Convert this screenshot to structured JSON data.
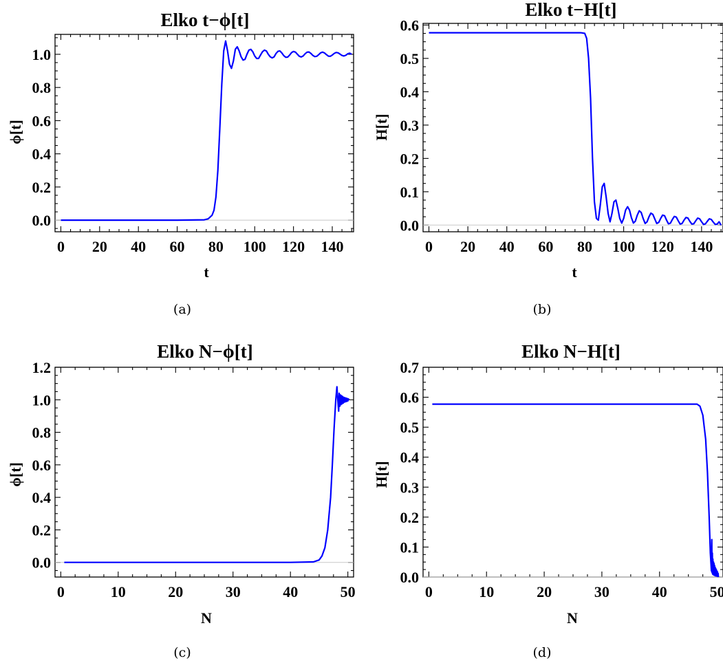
{
  "colors": {
    "series": "#0000ff",
    "frame": "#000000",
    "zero_line": "#c8c8c8"
  },
  "chart_data": [
    {
      "type": "line",
      "caption": "(a)",
      "title": "Elko t−ϕ[t]",
      "xlabel": "t",
      "ylabel": "ϕ[t]",
      "xlim": [
        -3,
        151
      ],
      "ylim": [
        -0.07,
        1.12
      ],
      "xticks": [
        0,
        20,
        40,
        60,
        80,
        100,
        120,
        140
      ],
      "yticks": [
        0.0,
        0.2,
        0.4,
        0.6,
        0.8,
        1.0
      ],
      "ytick_labels": [
        "0.0",
        "0.2",
        "0.4",
        "0.6",
        "0.8",
        "1.0"
      ],
      "series": [
        {
          "x": [
            0,
            20,
            40,
            60,
            74,
            76,
            78,
            79,
            80,
            81,
            82,
            83,
            84,
            85,
            86,
            87,
            88,
            89,
            90,
            91,
            92,
            93,
            94,
            95,
            96,
            97,
            98,
            99,
            100,
            101,
            102,
            103,
            104,
            105,
            106,
            107,
            108,
            109,
            110,
            111,
            112,
            113,
            114,
            115,
            116,
            117,
            118,
            119,
            120,
            121,
            122,
            123,
            124,
            125,
            126,
            127,
            128,
            129,
            130,
            131,
            132,
            133,
            134,
            135,
            136,
            137,
            138,
            139,
            140,
            141,
            142,
            143,
            144,
            145,
            146,
            147,
            148,
            149,
            150
          ],
          "y": [
            0.0,
            0.0,
            0.0,
            0.0,
            0.002,
            0.008,
            0.03,
            0.06,
            0.14,
            0.3,
            0.55,
            0.82,
            1.02,
            1.08,
            1.02,
            0.94,
            0.915,
            0.96,
            1.03,
            1.045,
            1.02,
            0.985,
            0.965,
            0.97,
            1.0,
            1.025,
            1.03,
            1.015,
            0.99,
            0.975,
            0.975,
            0.995,
            1.015,
            1.025,
            1.02,
            1.0,
            0.985,
            0.978,
            0.985,
            1.005,
            1.018,
            1.02,
            1.008,
            0.992,
            0.982,
            0.983,
            0.995,
            1.01,
            1.017,
            1.013,
            1.0,
            0.988,
            0.984,
            0.99,
            1.003,
            1.013,
            1.014,
            1.005,
            0.993,
            0.986,
            0.988,
            0.998,
            1.009,
            1.013,
            1.008,
            0.998,
            0.989,
            0.988,
            0.995,
            1.005,
            1.011,
            1.009,
            1.001,
            0.993,
            0.99,
            0.994,
            1.003,
            1.007,
            1.0
          ]
        }
      ]
    },
    {
      "type": "line",
      "caption": "(b)",
      "title": "Elko t−H[t]",
      "xlabel": "t",
      "ylabel": "H[t]",
      "xlim": [
        -3,
        151
      ],
      "ylim": [
        -0.02,
        0.605
      ],
      "xticks": [
        0,
        20,
        40,
        60,
        80,
        100,
        120,
        140
      ],
      "yticks": [
        0.0,
        0.1,
        0.2,
        0.3,
        0.4,
        0.5,
        0.6
      ],
      "ytick_labels": [
        "0.0",
        "0.1",
        "0.2",
        "0.3",
        "0.4",
        "0.5",
        "0.6"
      ],
      "series": [
        {
          "x": [
            0,
            20,
            40,
            60,
            78,
            80,
            81,
            82,
            83,
            84,
            85,
            86,
            87,
            88,
            89,
            90,
            91,
            92,
            93,
            94,
            95,
            96,
            97,
            98,
            99,
            100,
            101,
            102,
            103,
            104,
            105,
            106,
            107,
            108,
            109,
            110,
            111,
            112,
            113,
            114,
            115,
            116,
            117,
            118,
            119,
            120,
            121,
            122,
            123,
            124,
            125,
            126,
            127,
            128,
            129,
            130,
            131,
            132,
            133,
            134,
            135,
            136,
            137,
            138,
            139,
            140,
            141,
            142,
            143,
            144,
            145,
            146,
            147,
            148,
            149,
            150
          ],
          "y": [
            0.577,
            0.577,
            0.577,
            0.577,
            0.577,
            0.575,
            0.56,
            0.5,
            0.38,
            0.2,
            0.07,
            0.02,
            0.015,
            0.06,
            0.115,
            0.125,
            0.085,
            0.035,
            0.01,
            0.035,
            0.07,
            0.075,
            0.05,
            0.02,
            0.006,
            0.02,
            0.045,
            0.055,
            0.045,
            0.022,
            0.006,
            0.012,
            0.03,
            0.043,
            0.038,
            0.02,
            0.005,
            0.01,
            0.025,
            0.036,
            0.032,
            0.018,
            0.005,
            0.008,
            0.02,
            0.03,
            0.028,
            0.015,
            0.004,
            0.006,
            0.017,
            0.026,
            0.024,
            0.013,
            0.003,
            0.005,
            0.015,
            0.023,
            0.021,
            0.011,
            0.003,
            0.004,
            0.013,
            0.021,
            0.019,
            0.01,
            0.002,
            0.004,
            0.012,
            0.019,
            0.017,
            0.009,
            0.002,
            0.003,
            0.01,
            0.0
          ]
        }
      ]
    },
    {
      "type": "line",
      "caption": "(c)",
      "title": "Elko N−ϕ[t]",
      "xlabel": "N",
      "ylabel": "ϕ[t]",
      "xlim": [
        -1,
        51
      ],
      "ylim": [
        -0.09,
        1.2
      ],
      "xticks": [
        0,
        10,
        20,
        30,
        40,
        50
      ],
      "yticks": [
        0.0,
        0.2,
        0.4,
        0.6,
        0.8,
        1.0,
        1.2
      ],
      "ytick_labels": [
        "0.0",
        "0.2",
        "0.4",
        "0.6",
        "0.8",
        "1.0",
        "1.2"
      ],
      "series": [
        {
          "x": [
            0.6,
            10,
            20,
            30,
            40,
            44,
            45,
            45.5,
            46,
            46.5,
            47,
            47.3,
            47.6,
            47.9,
            48.1,
            48.25,
            48.4,
            48.5,
            48.6,
            48.7,
            48.8,
            48.9,
            49.0,
            49.1,
            49.2,
            49.3,
            49.4,
            49.5,
            49.6,
            49.7,
            49.8,
            49.9,
            50.0,
            50.1,
            50.2
          ],
          "y": [
            0.0,
            0.0,
            0.0,
            0.0,
            0.0,
            0.003,
            0.015,
            0.04,
            0.09,
            0.2,
            0.4,
            0.6,
            0.82,
            1.0,
            1.08,
            1.0,
            0.93,
            1.04,
            0.96,
            1.03,
            0.97,
            1.025,
            0.975,
            1.02,
            0.98,
            1.015,
            0.985,
            1.012,
            0.988,
            1.01,
            0.99,
            1.008,
            0.993,
            1.005,
            1.0
          ]
        }
      ]
    },
    {
      "type": "line",
      "caption": "(d)",
      "title": "Elko N−H[t]",
      "xlabel": "N",
      "ylabel": "H[t]",
      "xlim": [
        -1,
        51
      ],
      "ylim": [
        0.0,
        0.7
      ],
      "xticks": [
        0,
        10,
        20,
        30,
        40,
        50
      ],
      "yticks": [
        0.0,
        0.1,
        0.2,
        0.3,
        0.4,
        0.5,
        0.6,
        0.7
      ],
      "ytick_labels": [
        "0.0",
        "0.1",
        "0.2",
        "0.3",
        "0.4",
        "0.5",
        "0.6",
        "0.7"
      ],
      "series": [
        {
          "x": [
            0.6,
            10,
            20,
            30,
            40,
            45,
            46.5,
            47,
            47.5,
            48,
            48.3,
            48.6,
            48.8,
            49.0,
            49.05,
            49.1,
            49.15,
            49.2,
            49.25,
            49.3,
            49.35,
            49.4,
            49.45,
            49.5,
            49.55,
            49.6,
            49.65,
            49.7,
            49.75,
            49.8,
            49.85,
            49.9,
            49.95,
            50.0,
            50.05,
            50.1,
            50.15,
            50.2
          ],
          "y": [
            0.577,
            0.577,
            0.577,
            0.577,
            0.577,
            0.577,
            0.577,
            0.57,
            0.54,
            0.46,
            0.35,
            0.2,
            0.08,
            0.02,
            0.125,
            0.015,
            0.08,
            0.01,
            0.06,
            0.008,
            0.05,
            0.007,
            0.045,
            0.006,
            0.038,
            0.005,
            0.032,
            0.004,
            0.028,
            0.004,
            0.024,
            0.003,
            0.02,
            0.003,
            0.017,
            0.002,
            0.012,
            0.0
          ]
        }
      ]
    }
  ]
}
